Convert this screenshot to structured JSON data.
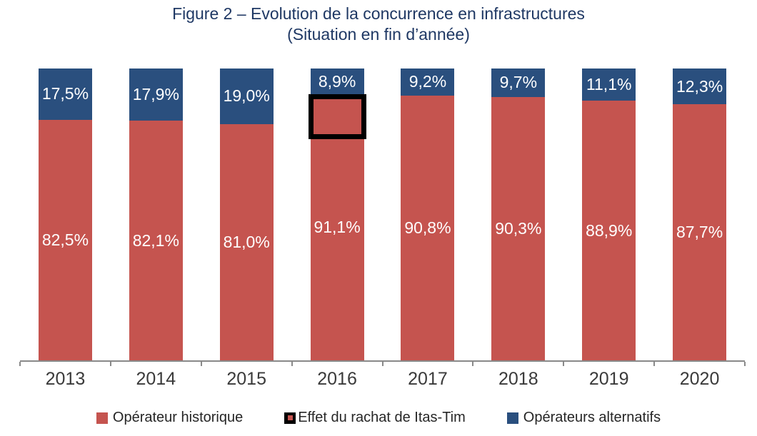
{
  "title": "Figure 2 – Evolution de la concurrence en infrastructures",
  "subtitle": "(Situation en fin d’année)",
  "chart_data": {
    "type": "bar",
    "stacked": true,
    "stacked_total": 100,
    "title": "Figure 2 – Evolution de la concurrence en infrastructures (Situation en fin d’année)",
    "categories": [
      "2013",
      "2014",
      "2015",
      "2016",
      "2017",
      "2018",
      "2019",
      "2020"
    ],
    "series": [
      {
        "name": "Opérateur historique",
        "color": "#c5544f",
        "values": [
          82.5,
          82.1,
          81.0,
          91.1,
          90.8,
          90.3,
          88.9,
          87.7
        ]
      },
      {
        "name": "Opérateurs alternatifs",
        "color": "#2a4f7e",
        "values": [
          17.5,
          17.9,
          19.0,
          8.9,
          9.2,
          9.7,
          11.1,
          12.3
        ]
      }
    ],
    "value_label_format": "one-decimal-comma-percent",
    "value_label_color": "#ffffff",
    "annotation": {
      "label": "Effet du rachat de Itas-Tim",
      "category": "2016",
      "shape": "black-outline-rectangle",
      "border_color": "#000000"
    },
    "legend_position": "bottom",
    "legend": [
      {
        "label": "Opérateur historique",
        "marker": "red-square"
      },
      {
        "label": "Effet du rachat de Itas-Tim",
        "marker": "black-outline-square"
      },
      {
        "label": "Opérateurs alternatifs",
        "marker": "blue-square"
      }
    ],
    "grid": false,
    "y_axis_visible": false,
    "ylim": [
      0,
      100
    ]
  },
  "colors": {
    "historique": "#c5544f",
    "alternatifs": "#2a4f7e",
    "annotation_border": "#000000",
    "title_text": "#1f3864",
    "axis_line": "#898989",
    "bar_label_text": "#ffffff",
    "category_text": "#3a3a3a",
    "legend_text": "#262626"
  }
}
